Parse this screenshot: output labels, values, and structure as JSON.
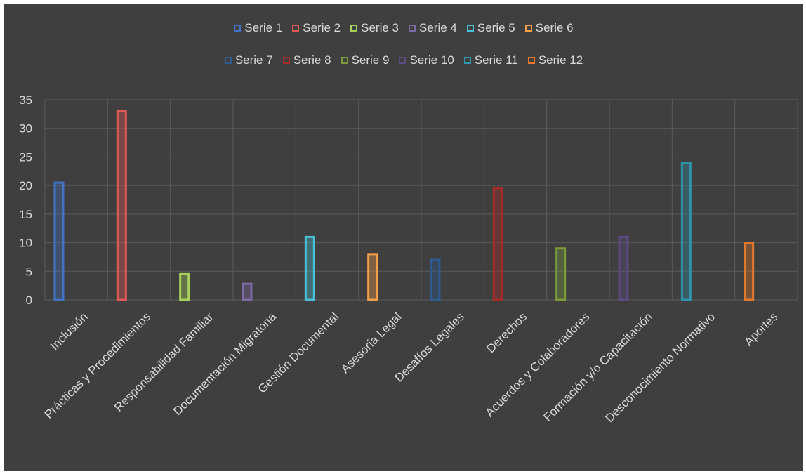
{
  "chart_data": {
    "type": "bar",
    "categories": [
      "Inclusión",
      "Prácticas y Procedimientos",
      "Responsabilidad Familiar",
      "Documentación Migratoria",
      "Gestión Documental",
      "Asesoría Legal",
      "Desafíos Legales",
      "Derechos",
      "Acuerdos y Colaboradores",
      "Formación y/o Capacitación",
      "Desconocimiento Normativo",
      "Aportes"
    ],
    "series": [
      {
        "name": "Serie 1",
        "color": "#4472c4",
        "values": [
          20.5,
          null,
          null,
          null,
          null,
          null,
          null,
          null,
          null,
          null,
          null,
          null
        ]
      },
      {
        "name": "Serie 2",
        "color": "#e05a57",
        "values": [
          null,
          33,
          null,
          null,
          null,
          null,
          null,
          null,
          null,
          null,
          null,
          null
        ]
      },
      {
        "name": "Serie 3",
        "color": "#a9d05a",
        "values": [
          null,
          null,
          4.5,
          null,
          null,
          null,
          null,
          null,
          null,
          null,
          null,
          null
        ]
      },
      {
        "name": "Serie 4",
        "color": "#7e6aa6",
        "values": [
          null,
          null,
          null,
          2.8,
          null,
          null,
          null,
          null,
          null,
          null,
          null,
          null
        ]
      },
      {
        "name": "Serie 5",
        "color": "#49c0d8",
        "values": [
          null,
          null,
          null,
          null,
          11,
          null,
          null,
          null,
          null,
          null,
          null,
          null
        ]
      },
      {
        "name": "Serie 6",
        "color": "#f59e48",
        "values": [
          null,
          null,
          null,
          null,
          null,
          8,
          null,
          null,
          null,
          null,
          null,
          null
        ]
      },
      {
        "name": "Serie 7",
        "color": "#2e5b8f",
        "values": [
          null,
          null,
          null,
          null,
          null,
          null,
          7,
          null,
          null,
          null,
          null,
          null
        ]
      },
      {
        "name": "Serie 8",
        "color": "#a62a28",
        "values": [
          null,
          null,
          null,
          null,
          null,
          null,
          null,
          19.5,
          null,
          null,
          null,
          null
        ]
      },
      {
        "name": "Serie 9",
        "color": "#7c9a3c",
        "values": [
          null,
          null,
          null,
          null,
          null,
          null,
          null,
          null,
          9,
          null,
          null,
          null
        ]
      },
      {
        "name": "Serie 10",
        "color": "#5c4a80",
        "values": [
          null,
          null,
          null,
          null,
          null,
          null,
          null,
          null,
          null,
          11,
          null,
          null
        ]
      },
      {
        "name": "Serie 11",
        "color": "#2f93ad",
        "values": [
          null,
          null,
          null,
          null,
          null,
          null,
          null,
          null,
          null,
          null,
          24,
          null
        ]
      },
      {
        "name": "Serie 12",
        "color": "#e4782b",
        "values": [
          null,
          null,
          null,
          null,
          null,
          null,
          null,
          null,
          null,
          null,
          null,
          10
        ]
      }
    ],
    "y_ticks": [
      "0",
      "5",
      "10",
      "15",
      "20",
      "25",
      "30",
      "35"
    ],
    "ylim": [
      0,
      35
    ],
    "grid": true,
    "legend_position": "top-center",
    "background": "#3f3f3f",
    "text_color": "#d9d9d9",
    "grid_color": "#5b5b5b"
  }
}
